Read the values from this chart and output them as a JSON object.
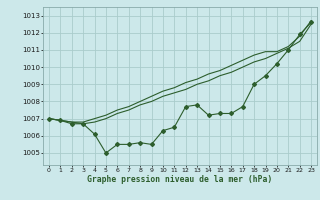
{
  "title": "Graphe pression niveau de la mer (hPa)",
  "background_color": "#cce8ea",
  "grid_color": "#aacccc",
  "line_color": "#2d5e2d",
  "xlim": [
    -0.5,
    23.5
  ],
  "ylim": [
    1004.3,
    1013.5
  ],
  "yticks": [
    1005,
    1006,
    1007,
    1008,
    1009,
    1010,
    1011,
    1012,
    1013
  ],
  "xticks": [
    0,
    1,
    2,
    3,
    4,
    5,
    6,
    7,
    8,
    9,
    10,
    11,
    12,
    13,
    14,
    15,
    16,
    17,
    18,
    19,
    20,
    21,
    22,
    23
  ],
  "series1": [
    1007.0,
    1006.9,
    1006.7,
    1006.7,
    1006.1,
    1005.0,
    1005.5,
    1005.5,
    1005.6,
    1005.5,
    1006.3,
    1006.5,
    1007.7,
    1007.8,
    1007.2,
    1007.3,
    1007.3,
    1007.7,
    1009.0,
    1009.5,
    1010.2,
    1011.0,
    1011.9,
    1012.6
  ],
  "series2": [
    1007.0,
    1006.9,
    1006.8,
    1006.7,
    1006.8,
    1007.0,
    1007.3,
    1007.5,
    1007.8,
    1008.0,
    1008.3,
    1008.5,
    1008.7,
    1009.0,
    1009.2,
    1009.5,
    1009.7,
    1010.0,
    1010.3,
    1010.5,
    1010.8,
    1011.1,
    1011.5,
    1012.5
  ],
  "series3": [
    1007.0,
    1006.9,
    1006.8,
    1006.8,
    1007.0,
    1007.2,
    1007.5,
    1007.7,
    1008.0,
    1008.3,
    1008.6,
    1008.8,
    1009.1,
    1009.3,
    1009.6,
    1009.8,
    1010.1,
    1010.4,
    1010.7,
    1010.9,
    1010.9,
    1011.2,
    1011.8,
    1012.7
  ]
}
